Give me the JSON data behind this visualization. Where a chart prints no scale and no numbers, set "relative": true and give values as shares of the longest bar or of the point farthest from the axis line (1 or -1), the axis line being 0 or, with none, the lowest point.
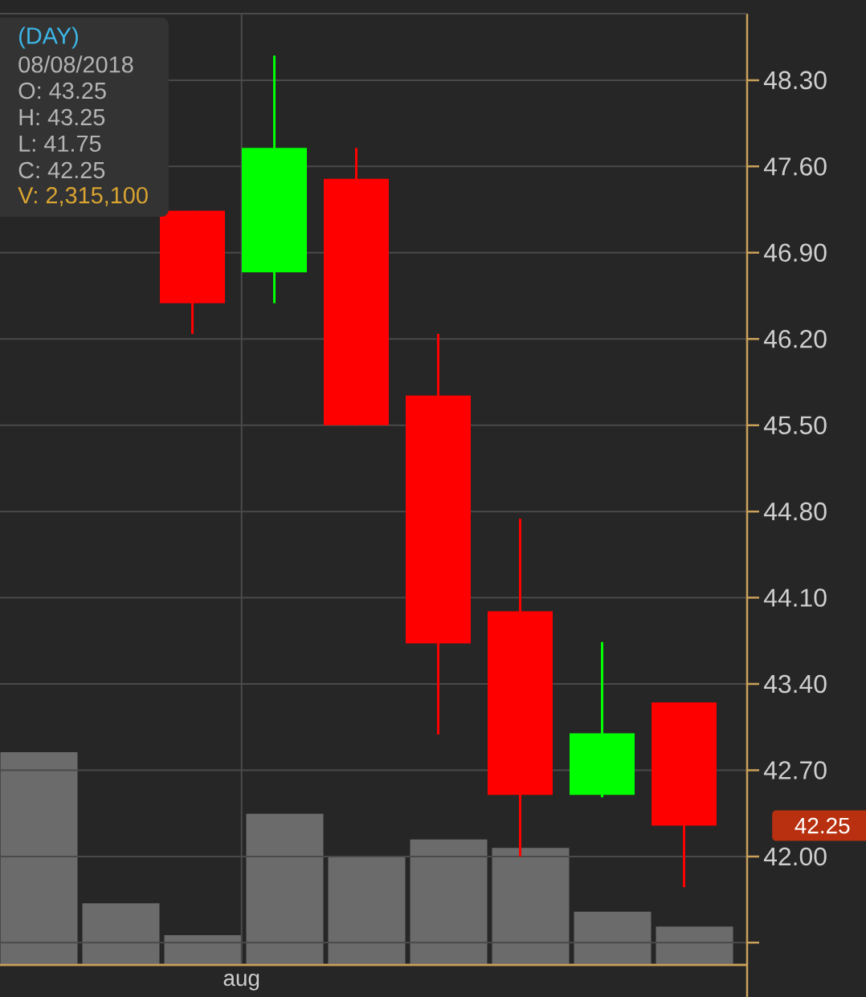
{
  "chart_data": [
    {
      "type": "candlestick",
      "title": "(DAY)",
      "categories": [
        null,
        null,
        null,
        "aug",
        null,
        null,
        null,
        null,
        null
      ],
      "ohlc": [
        null,
        null,
        [
          47.24,
          47.24,
          46.24,
          46.49
        ],
        [
          46.74,
          48.5,
          46.49,
          47.75
        ],
        [
          47.5,
          47.75,
          45.5,
          45.5
        ],
        [
          45.74,
          46.24,
          42.99,
          43.73
        ],
        [
          43.99,
          44.74,
          42.0,
          42.5
        ],
        [
          42.5,
          43.74,
          42.48,
          43.0
        ],
        [
          43.25,
          43.25,
          41.75,
          42.25
        ]
      ],
      "colors": [
        null,
        null,
        "#ff0000",
        "#00ff00",
        "#ff0000",
        "#ff0000",
        "#ff0000",
        "#00ff00",
        "#ff0000"
      ],
      "ylim": [
        41.12,
        48.84
      ],
      "yticks": [
        {
          "value": 41.3,
          "label": null
        },
        {
          "value": 42.0,
          "label": "42.00"
        },
        {
          "value": 42.7,
          "label": "42.70"
        },
        {
          "value": 43.4,
          "label": "43.40"
        },
        {
          "value": 44.1,
          "label": "44.10"
        },
        {
          "value": 44.8,
          "label": "44.80"
        },
        {
          "value": 45.5,
          "label": "45.50"
        },
        {
          "value": 46.2,
          "label": "46.20"
        },
        {
          "value": 46.9,
          "label": "46.90"
        },
        {
          "value": 47.6,
          "label": "47.60"
        },
        {
          "value": 48.3,
          "label": "48.30"
        }
      ],
      "grid": true,
      "annotations": [
        "08/08/2018",
        "O: 43.25",
        "H: 43.25",
        "L: 41.75",
        "C: 42.25",
        "V: 2,315,100",
        "42.25"
      ]
    },
    {
      "type": "bar",
      "relative": true,
      "categories": [
        null,
        null,
        null,
        null,
        null,
        null,
        null,
        null,
        null
      ],
      "values": [
        1,
        0.29,
        0.14,
        0.71,
        0.51,
        0.59,
        0.55,
        0.25,
        0.18
      ],
      "color": "#6b6b6b"
    }
  ]
}
